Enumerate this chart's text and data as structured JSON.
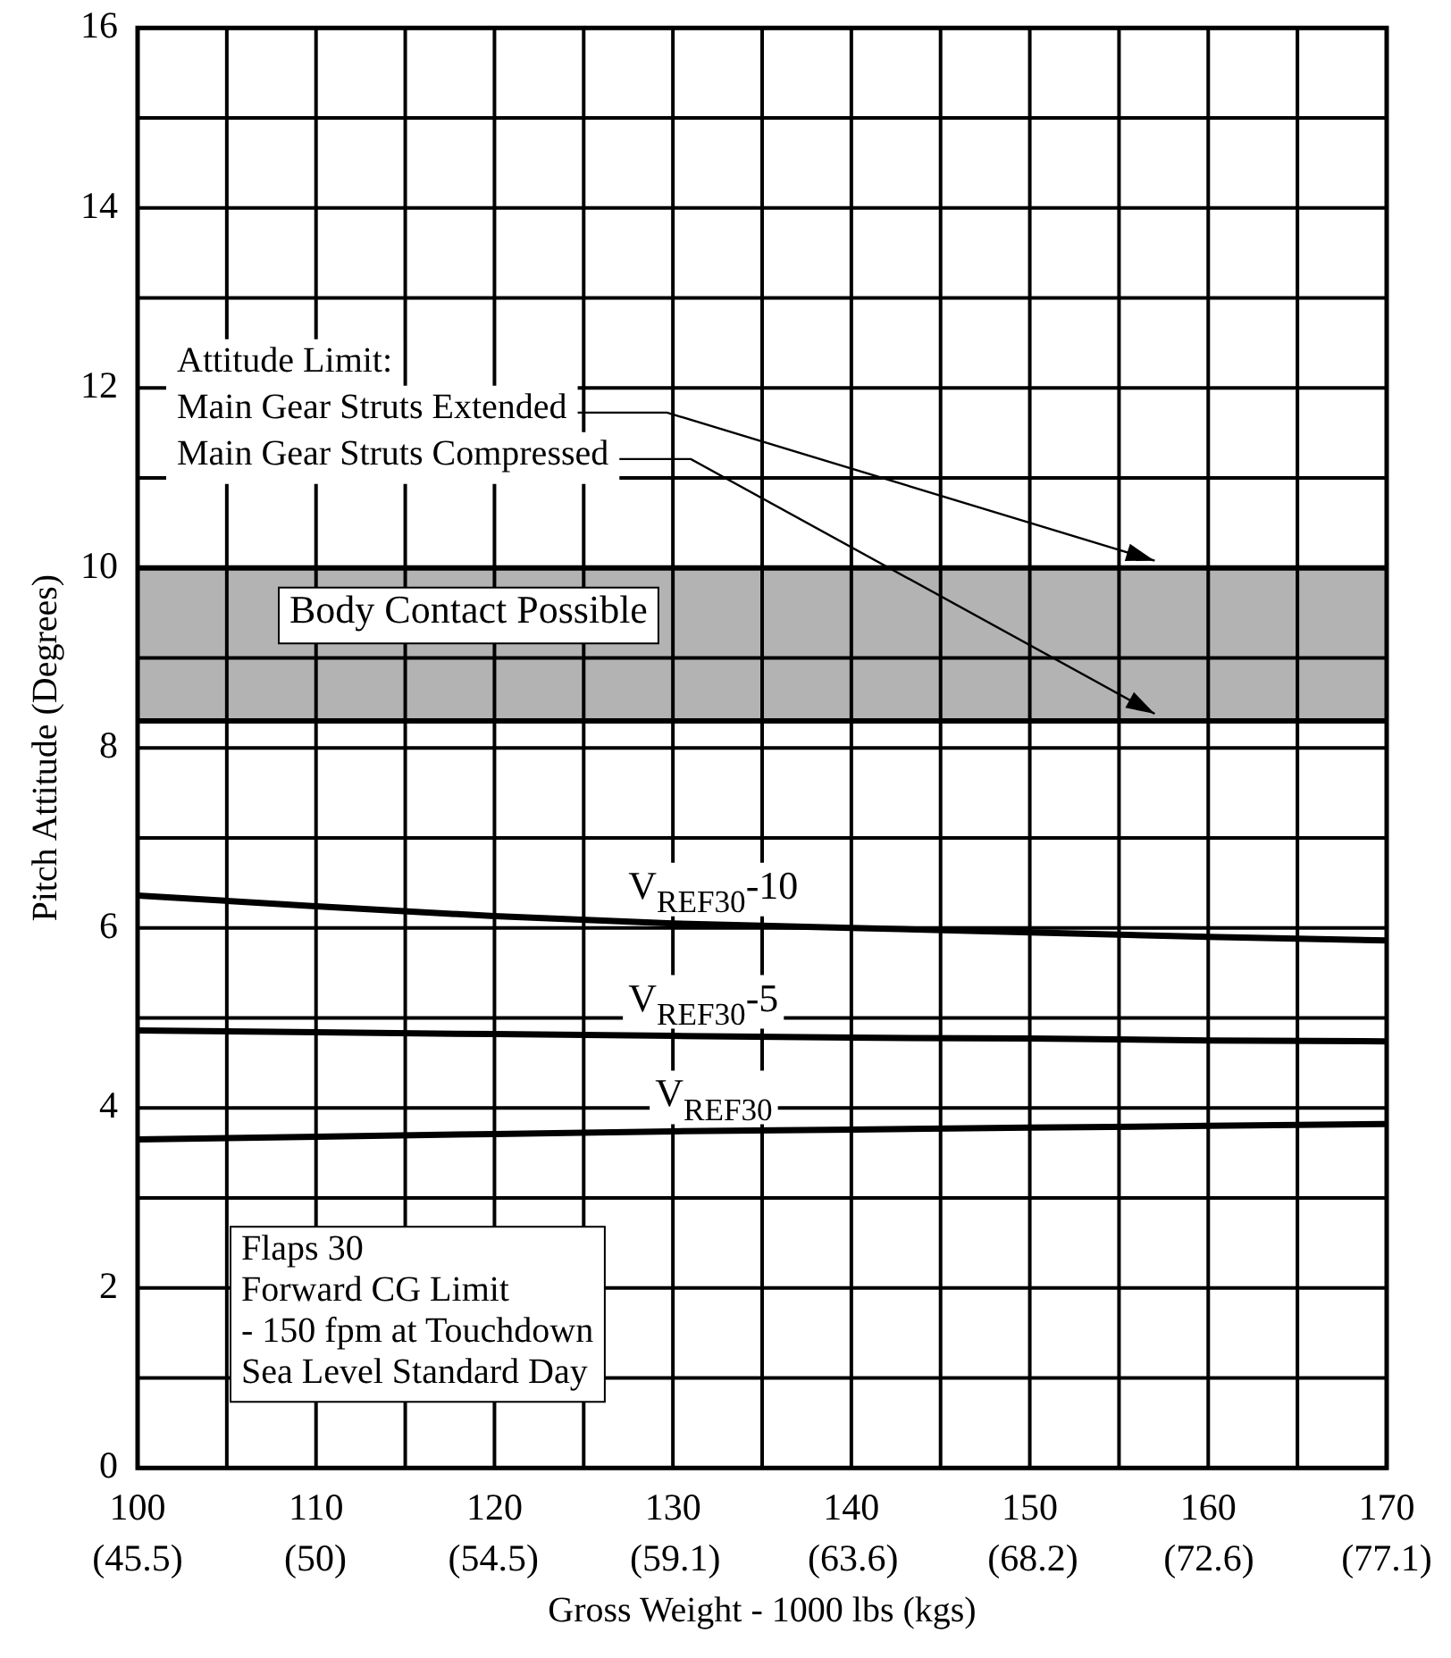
{
  "chart_data": {
    "type": "line",
    "xlabel": "Gross Weight - 1000 lbs (kgs)",
    "ylabel": "Pitch Attitude (Degrees)",
    "xlim": [
      100,
      170
    ],
    "xticks": [
      100,
      {
        "value": 105,
        "label": null
      },
      110,
      {
        "value": 115,
        "label": null
      },
      120,
      {
        "value": 125,
        "label": null
      },
      130,
      {
        "value": 135,
        "label": null
      },
      140,
      {
        "value": 145,
        "label": null
      },
      150,
      {
        "value": 155,
        "label": null
      },
      160,
      {
        "value": 165,
        "label": null
      },
      170
    ],
    "x2lim": [
      45.5,
      77.1
    ],
    "x2ticks": [
      {
        "value": 45.5,
        "label": "(45.5)"
      },
      {
        "value": 50,
        "label": "(50)"
      },
      {
        "value": 54.5,
        "label": "(54.5)"
      },
      {
        "value": 59.1,
        "label": "(59.1)"
      },
      {
        "value": 63.6,
        "label": "(63.6)"
      },
      {
        "value": 68.15,
        "label": "(68.2)"
      },
      {
        "value": 72.6,
        "label": "(72.6)"
      },
      {
        "value": 77.1,
        "label": "(77.1)"
      }
    ],
    "ref_lines": [
      {
        "axis": "y",
        "value": 10,
        "color": "#000000"
      },
      {
        "axis": "y",
        "value": 8.3,
        "color": "#000000"
      }
    ],
    "ylim": [
      0,
      16
    ],
    "yticks": [
      0,
      {
        "value": 1,
        "label": null
      },
      2,
      {
        "value": 3,
        "label": null
      },
      4,
      {
        "value": 5,
        "label": null
      },
      6,
      {
        "value": 7,
        "label": null
      },
      8,
      {
        "value": 9,
        "label": null
      },
      10,
      {
        "value": 11,
        "label": null
      },
      12,
      {
        "value": 13,
        "label": null
      },
      14,
      {
        "value": 15,
        "label": null
      },
      16
    ],
    "grid": true,
    "legend": false,
    "x": [
      100,
      110,
      120,
      130,
      140,
      150,
      160,
      170
    ],
    "series": [
      {
        "name": "V$_{REF30}$-10",
        "color": "#000000",
        "values": [
          6.36,
          6.24,
          6.13,
          6.05,
          6.0,
          5.95,
          5.9,
          5.86
        ]
      },
      {
        "name": "V$_{REF30}$-5",
        "color": "#000000",
        "values": [
          4.86,
          4.84,
          4.82,
          4.8,
          4.78,
          4.77,
          4.75,
          4.74
        ]
      },
      {
        "name": "V$_{REF30}$",
        "color": "#000000",
        "values": [
          3.65,
          3.68,
          3.71,
          3.74,
          3.76,
          3.78,
          3.8,
          3.82
        ]
      }
    ],
    "bands": [
      {
        "axis": "y",
        "from": 8.3,
        "to": 10,
        "label": "Body Contact Possible",
        "color": "#b3b3b3"
      }
    ],
    "annotations": [
      "Attitude Limit:",
      {
        "text": "Main Gear Struts Extended",
        "x": 157,
        "y": 10
      },
      {
        "text": "Main Gear Struts Compressed",
        "x": 157,
        "y": 8.3
      },
      "Flaps 30\nForward CG Limit\n- 150 fpm at Touchdown\nSea Level Standard Day"
    ]
  }
}
